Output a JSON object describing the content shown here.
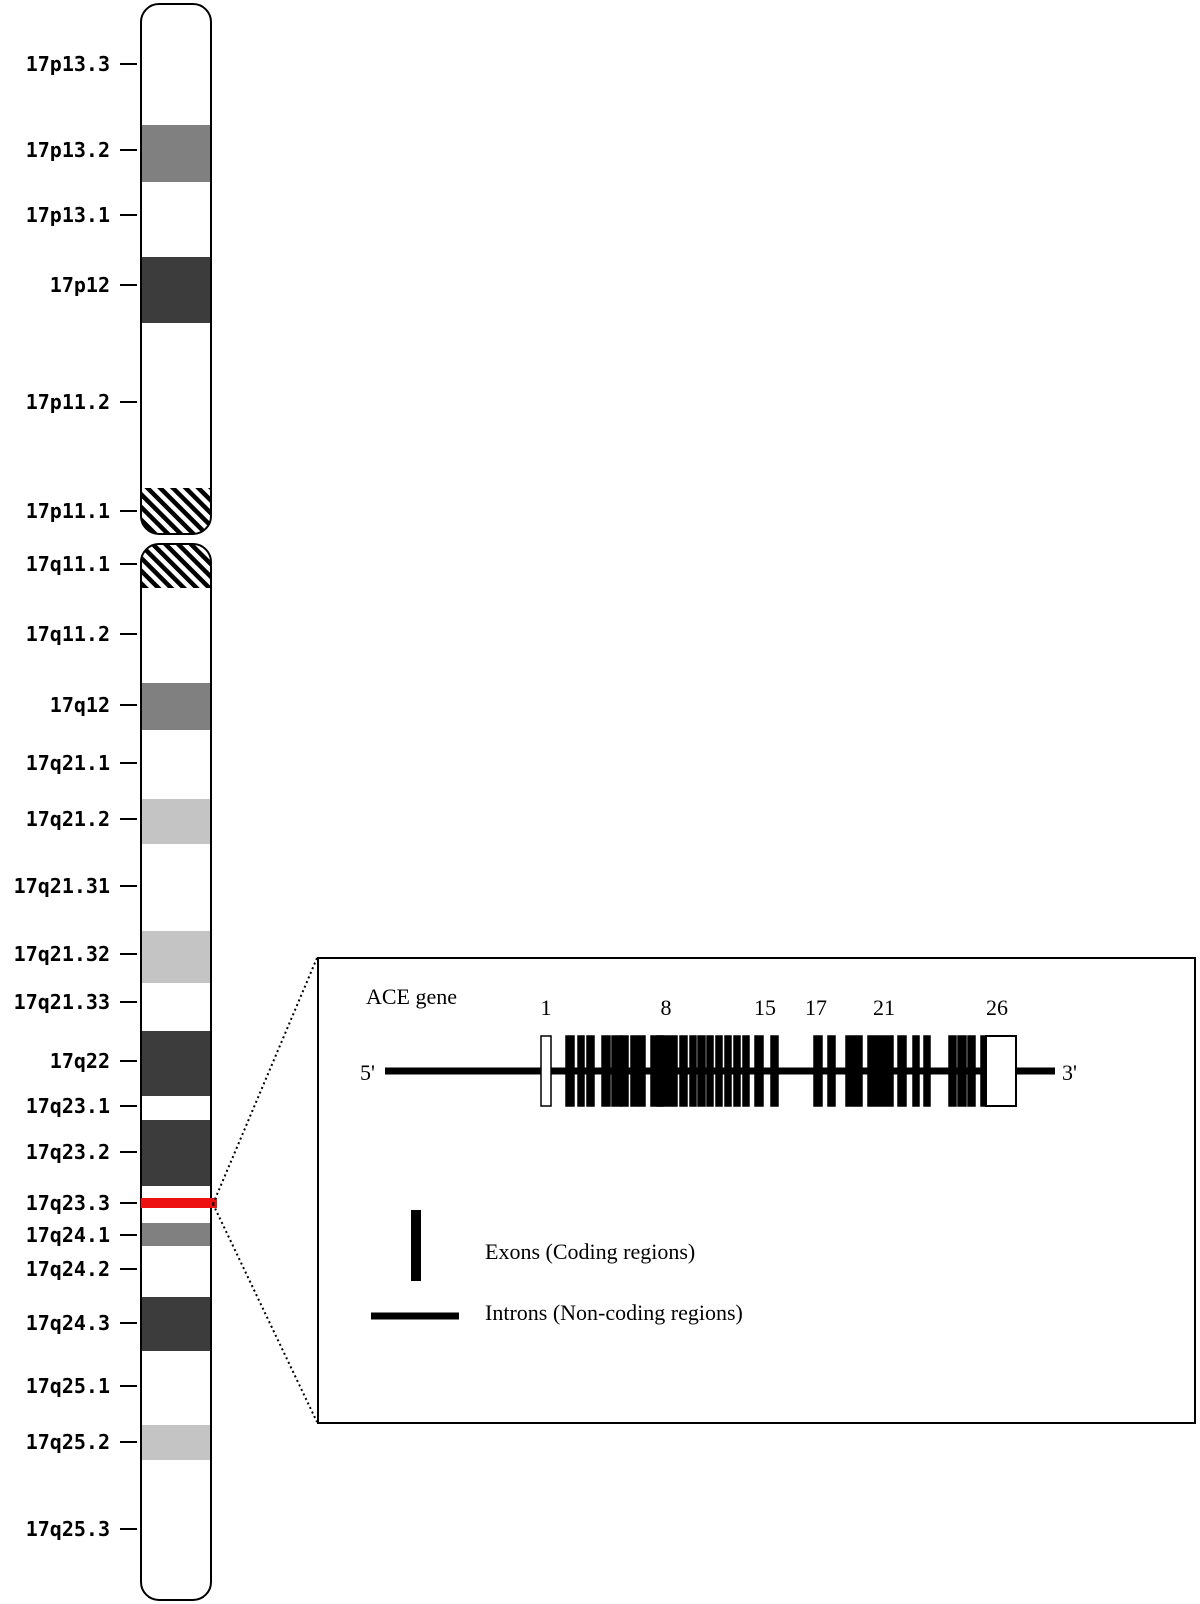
{
  "chromosome": {
    "bands": [
      {
        "label": "17p13.3",
        "stain": "white"
      },
      {
        "label": "17p13.2",
        "stain": "gray"
      },
      {
        "label": "17p13.1",
        "stain": "white"
      },
      {
        "label": "17p12",
        "stain": "dark"
      },
      {
        "label": "17p11.2",
        "stain": "white"
      },
      {
        "label": "17p11.1",
        "stain": "centromere"
      },
      {
        "label": "17q11.1",
        "stain": "centromere"
      },
      {
        "label": "17q11.2",
        "stain": "white"
      },
      {
        "label": "17q12",
        "stain": "gray"
      },
      {
        "label": "17q21.1",
        "stain": "white"
      },
      {
        "label": "17q21.2",
        "stain": "light"
      },
      {
        "label": "17q21.31",
        "stain": "white"
      },
      {
        "label": "17q21.32",
        "stain": "light"
      },
      {
        "label": "17q21.33",
        "stain": "white"
      },
      {
        "label": "17q22",
        "stain": "dark"
      },
      {
        "label": "17q23.1",
        "stain": "white"
      },
      {
        "label": "17q23.2",
        "stain": "dark"
      },
      {
        "label": "17q23.3",
        "stain": "highlight"
      },
      {
        "label": "17q24.1",
        "stain": "gray"
      },
      {
        "label": "17q24.2",
        "stain": "white"
      },
      {
        "label": "17q24.3",
        "stain": "dark"
      },
      {
        "label": "17q25.1",
        "stain": "white"
      },
      {
        "label": "17q25.2",
        "stain": "light"
      },
      {
        "label": "17q25.3",
        "stain": "white"
      }
    ],
    "highlight_band": "17q23.3",
    "colors": {
      "dark": "#3c3c3c",
      "gray": "#808080",
      "light": "#c4c4c4",
      "white": "#ffffff",
      "highlight": "#ee1111"
    }
  },
  "gene_panel": {
    "title": "ACE gene",
    "five_prime": "5'",
    "three_prime": "3'",
    "exon_numbers": [
      "1",
      "8",
      "15",
      "17",
      "21",
      "26"
    ],
    "legend": {
      "exons": "Exons (Coding regions)",
      "introns": "Introns (Non-coding regions)"
    }
  }
}
